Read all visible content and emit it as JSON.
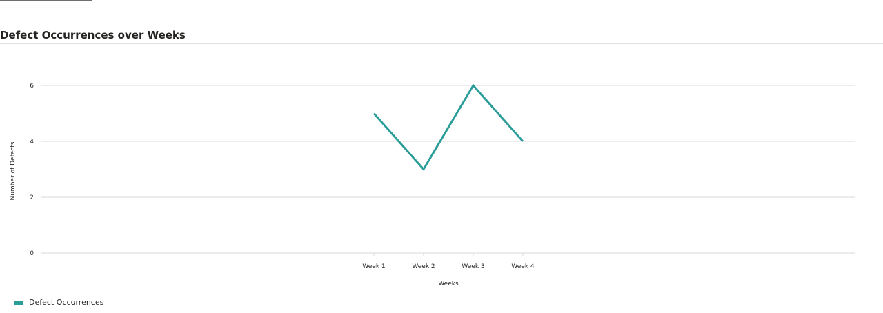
{
  "panel": {
    "title": "Defect Occurrences over Weeks"
  },
  "chart_data": {
    "type": "line",
    "title": "Defect Occurrences over Weeks",
    "categories": [
      "Week 1",
      "Week 2",
      "Week 3",
      "Week 4"
    ],
    "series": [
      {
        "name": "Defect Occurrences",
        "values": [
          5,
          3,
          6,
          4
        ],
        "color": "#2a9d99"
      }
    ],
    "xlabel": "Weeks",
    "ylabel": "Number of Defects",
    "ylim": [
      0,
      6
    ],
    "yticks": [
      0,
      2,
      4,
      6
    ],
    "grid": true,
    "legend": "bottom-left"
  }
}
